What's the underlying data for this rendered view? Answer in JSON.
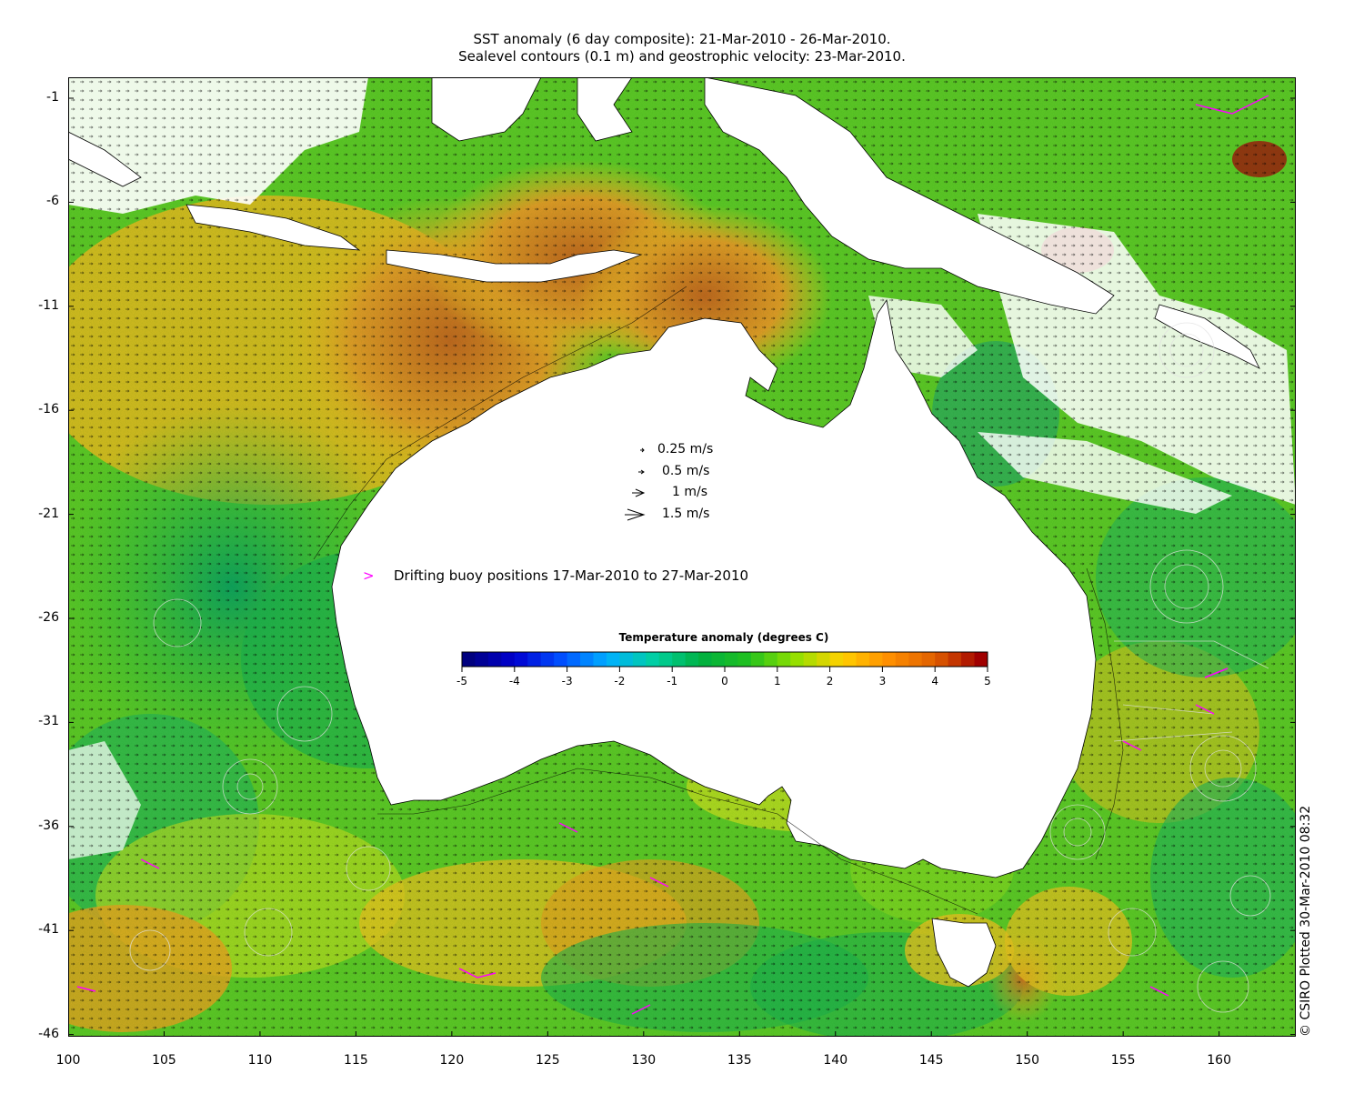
{
  "title": {
    "line1": "SST anomaly (6 day composite): 21-Mar-2010 - 26-Mar-2010.",
    "line2": "Sealevel contours (0.1 m) and geostrophic velocity: 23-Mar-2010."
  },
  "map": {
    "y_ticks": [
      "-1",
      "-6",
      "-11",
      "-16",
      "-21",
      "-26",
      "-31",
      "-36",
      "-41",
      "-46"
    ],
    "x_ticks": [
      "100",
      "105",
      "110",
      "115",
      "120",
      "125",
      "130",
      "135",
      "140",
      "145",
      "150",
      "155",
      "160"
    ],
    "lon_range": [
      100,
      164
    ],
    "lat_range": [
      -46,
      0
    ]
  },
  "velocity_legend": [
    {
      "label": "0.25 m/s",
      "speed": 0.25
    },
    {
      "label": "0.5 m/s",
      "speed": 0.5
    },
    {
      "label": "1 m/s",
      "speed": 1
    },
    {
      "label": "1.5 m/s",
      "speed": 1.5
    }
  ],
  "buoy_legend": {
    "marker": ">",
    "label": "Drifting buoy positions 17-Mar-2010 to 27-Mar-2010",
    "color": "#ff00ff"
  },
  "colorbar": {
    "title": "Temperature anomaly (degrees C)",
    "ticks": [
      "-5",
      "-4",
      "-3",
      "-2",
      "-1",
      "0",
      "1",
      "2",
      "3",
      "4",
      "5"
    ],
    "range": [
      -5,
      5
    ],
    "colors": [
      "#00007f",
      "#0000d0",
      "#0050ff",
      "#00b0ff",
      "#00d0a0",
      "#00b040",
      "#20c020",
      "#90e000",
      "#ffd000",
      "#ff9000",
      "#e06000",
      "#a00000"
    ]
  },
  "credit": "© CSIRO Plotted 30-Mar-2010 08:32",
  "colors": {
    "land": "#ffffff",
    "ocean_warm": "#e8a020",
    "ocean_hot": "#c86420",
    "ocean_neutral": "#70d020",
    "ocean_cool": "#20b060",
    "cloud_gap": "#ffffff"
  }
}
